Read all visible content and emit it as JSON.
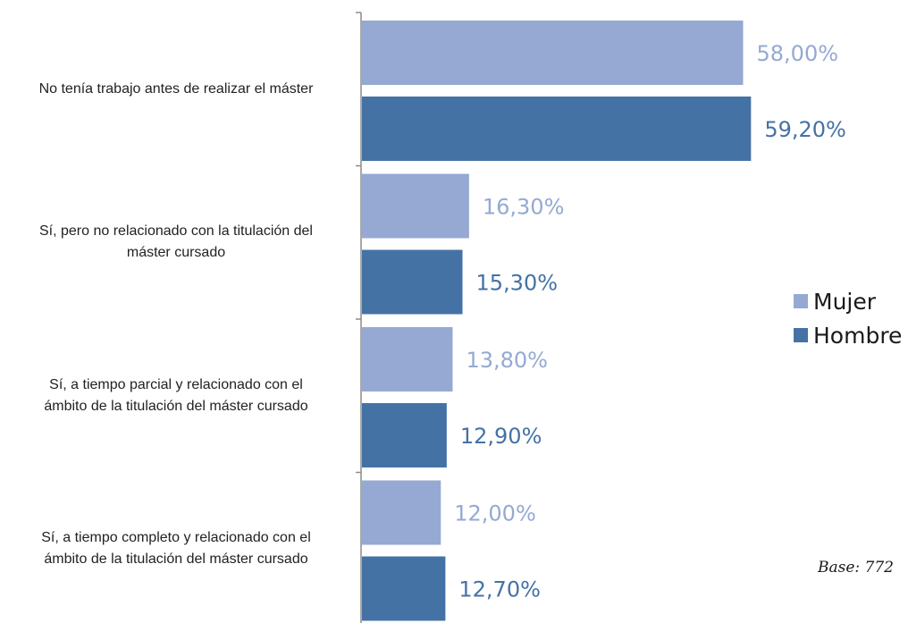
{
  "chart_data": {
    "type": "bar",
    "orientation": "horizontal",
    "categories": [
      "No tenía trabajo antes de realizar el máster",
      "Sí, pero no relacionado con la titulación del máster cursado",
      "Sí, a tiempo parcial y relacionado con el ámbito de la titulación del máster cursado",
      "Sí, a tiempo completo y relacionado con el ámbito de la titulación del máster cursado"
    ],
    "category_lines": [
      [
        "No tenía trabajo antes de realizar el máster"
      ],
      [
        "Sí, pero no relacionado con la titulación del",
        "máster cursado"
      ],
      [
        "Sí, a tiempo parcial y relacionado con el",
        "ámbito de la titulación del máster cursado"
      ],
      [
        "Sí, a tiempo completo y relacionado con el",
        "ámbito de la titulación del máster cursado"
      ]
    ],
    "series": [
      {
        "name": "Mujer",
        "color": "#95a9d2",
        "values": [
          58.0,
          16.3,
          13.8,
          12.0
        ],
        "labels": [
          "58,00%",
          "16,30%",
          "13,80%",
          "12,00%"
        ]
      },
      {
        "name": "Hombre",
        "color": "#4472a5",
        "values": [
          59.2,
          15.3,
          12.9,
          12.7
        ],
        "labels": [
          "59,20%",
          "15,30%",
          "12,90%",
          "12,70%"
        ]
      }
    ],
    "xlim": [
      0,
      70
    ],
    "grid": false,
    "legend_position": "right",
    "note": "Base: 772"
  }
}
